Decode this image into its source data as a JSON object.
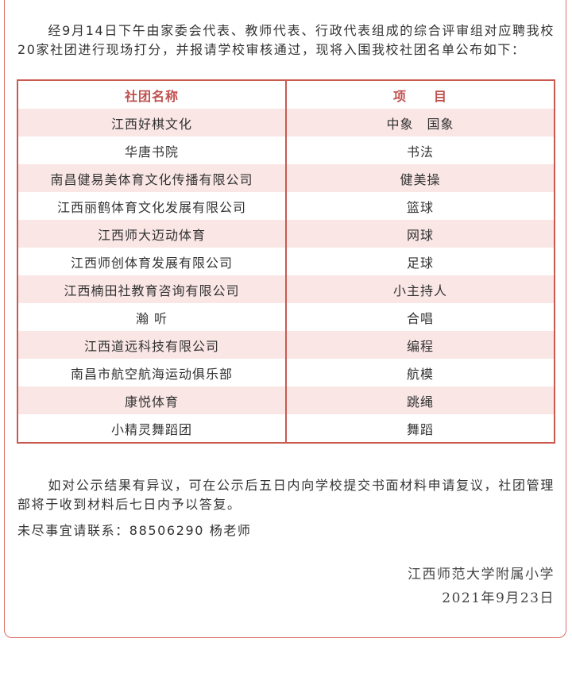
{
  "notice": {
    "intro": "经9月14日下午由家委会代表、教师代表、行政代表组成的综合评审组对应聘我校20家社团进行现场打分，并报请学校审核通过，现将入围我校社团名单公布如下：",
    "table": {
      "header": [
        "社团名称",
        "项　　目"
      ],
      "rows": [
        [
          "江西好棋文化",
          "中象　国象"
        ],
        [
          "华唐书院",
          "书法"
        ],
        [
          "南昌健易美体育文化传播有限公司",
          "健美操"
        ],
        [
          "江西丽鹤体育文化发展有限公司",
          "篮球"
        ],
        [
          "江西师大迈动体育",
          "网球"
        ],
        [
          "江西师创体育发展有限公司",
          "足球"
        ],
        [
          "江西楠田社教育咨询有限公司",
          "小主持人"
        ],
        [
          "瀚 听",
          "合唱"
        ],
        [
          "江西道远科技有限公司",
          "编程"
        ],
        [
          "南昌市航空航海运动俱乐部",
          "航模"
        ],
        [
          "康悦体育",
          "跳绳"
        ],
        [
          "小精灵舞蹈团",
          "舞蹈"
        ]
      ]
    },
    "closing": "如对公示结果有异议，可在公示后五日内向学校提交书面材料申请复议，社团管理部将于收到材料后七日内予以答复。",
    "contact": "未尽事宜请联系：88506290 杨老师",
    "signature": "江西师范大学附属小学",
    "date": "2021年9月23日"
  }
}
